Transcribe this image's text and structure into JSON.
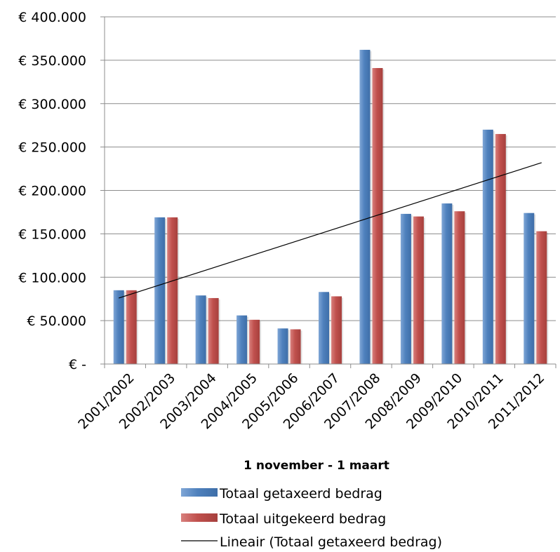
{
  "chart_data": {
    "type": "bar",
    "title": "",
    "xlabel": "1 november - 1 maart",
    "ylabel": "",
    "ylim": [
      0,
      400000
    ],
    "y_ticks": [
      0,
      50000,
      100000,
      150000,
      200000,
      250000,
      300000,
      350000,
      400000
    ],
    "y_tick_labels": [
      "€ -",
      "€ 50.000",
      "€ 100.000",
      "€ 150.000",
      "€ 200.000",
      "€ 250.000",
      "€ 300.000",
      "€ 350.000",
      "€ 400.000"
    ],
    "grid": "horizontal",
    "legend_position": "bottom",
    "categories": [
      "2001/2002",
      "2002/2003",
      "2003/2004",
      "2004/2005",
      "2005/2006",
      "2006/2007",
      "2007/2008",
      "2008/2009",
      "2009/2010",
      "2010/2011",
      "2011/2012"
    ],
    "series": [
      {
        "name": "Totaal getaxeerd bedrag",
        "color": "#4F81BD",
        "values": [
          85000,
          169000,
          79000,
          56000,
          41000,
          83000,
          362000,
          173000,
          185000,
          270000,
          174000
        ]
      },
      {
        "name": "Totaal uitgekeerd bedrag",
        "color": "#C0504D",
        "values": [
          85000,
          169000,
          76000,
          51000,
          40000,
          78000,
          341000,
          170000,
          176000,
          265000,
          153000
        ]
      }
    ],
    "trendline": {
      "name": "Lineair (Totaal getaxeerd bedrag)",
      "color": "#000000",
      "start_value": 76000,
      "end_value": 232000
    }
  }
}
